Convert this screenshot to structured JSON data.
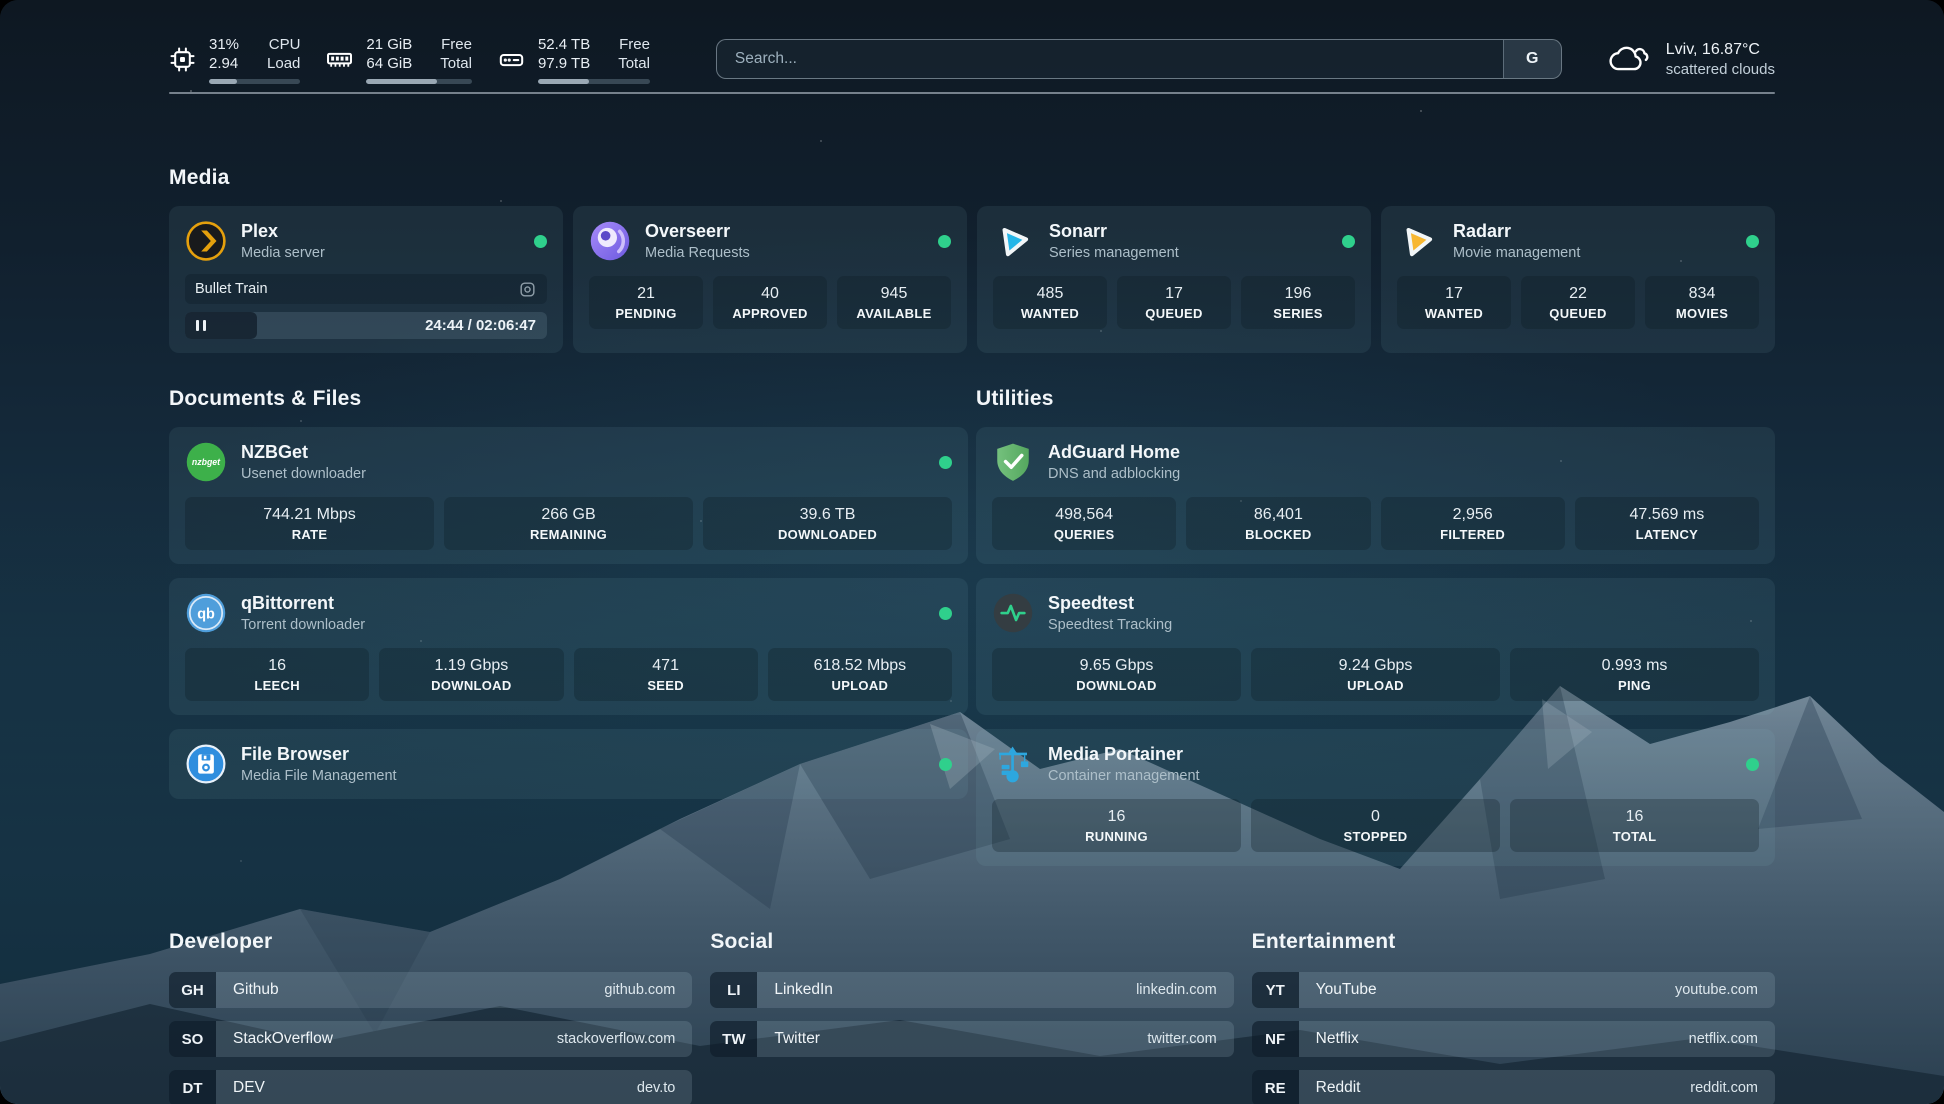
{
  "colors": {
    "status_online": "#2fd08c",
    "plex_gold": "#e5a00d",
    "overseerr_purple": "#8b79f2",
    "sonarr_blue": "#25b6e8",
    "radarr_orange": "#f7b731",
    "nzbget_green": "#3db04a",
    "qbittorrent_blue": "#4f9edb",
    "filebrowser_blue": "#2f8ede",
    "adguard_green": "#67b279",
    "speedtest_green": "#2fd08c",
    "portainer_blue": "#2da7df"
  },
  "topbar": {
    "resources": [
      {
        "icon": "cpu-icon",
        "value_top": "31%",
        "label_top": "CPU",
        "value_bottom": "2.94",
        "label_bottom": "Load",
        "progress_pct": 31
      },
      {
        "icon": "memory-icon",
        "value_top": "21 GiB",
        "label_top": "Free",
        "value_bottom": "64 GiB",
        "label_bottom": "Total",
        "progress_pct": 67
      },
      {
        "icon": "disk-icon",
        "value_top": "52.4 TB",
        "label_top": "Free",
        "value_bottom": "97.9 TB",
        "label_bottom": "Total",
        "progress_pct": 46
      }
    ],
    "search": {
      "placeholder": "Search...",
      "button_label": "G"
    },
    "weather": {
      "icon": "cloud-icon",
      "location": "Lviv, 16.87°C",
      "condition": "scattered clouds"
    }
  },
  "media": {
    "title": "Media",
    "plex": {
      "name": "Plex",
      "desc": "Media server",
      "online": true,
      "now_playing": "Bullet Train",
      "time_display": "24:44 / 02:06:47",
      "progress_pct": 20
    },
    "overseerr": {
      "name": "Overseerr",
      "desc": "Media Requests",
      "online": true,
      "stats": [
        {
          "value": "21",
          "label": "PENDING"
        },
        {
          "value": "40",
          "label": "APPROVED"
        },
        {
          "value": "945",
          "label": "AVAILABLE"
        }
      ]
    },
    "sonarr": {
      "name": "Sonarr",
      "desc": "Series management",
      "online": true,
      "stats": [
        {
          "value": "485",
          "label": "WANTED"
        },
        {
          "value": "17",
          "label": "QUEUED"
        },
        {
          "value": "196",
          "label": "SERIES"
        }
      ]
    },
    "radarr": {
      "name": "Radarr",
      "desc": "Movie management",
      "online": true,
      "stats": [
        {
          "value": "17",
          "label": "WANTED"
        },
        {
          "value": "22",
          "label": "QUEUED"
        },
        {
          "value": "834",
          "label": "MOVIES"
        }
      ]
    }
  },
  "documents": {
    "title": "Documents & Files",
    "nzbget": {
      "name": "NZBGet",
      "desc": "Usenet downloader",
      "online": true,
      "stats": [
        {
          "value": "744.21 Mbps",
          "label": "RATE"
        },
        {
          "value": "266 GB",
          "label": "REMAINING"
        },
        {
          "value": "39.6 TB",
          "label": "DOWNLOADED"
        }
      ]
    },
    "qbittorrent": {
      "name": "qBittorrent",
      "desc": "Torrent downloader",
      "online": true,
      "stats": [
        {
          "value": "16",
          "label": "LEECH"
        },
        {
          "value": "1.19 Gbps",
          "label": "DOWNLOAD"
        },
        {
          "value": "471",
          "label": "SEED"
        },
        {
          "value": "618.52 Mbps",
          "label": "UPLOAD"
        }
      ]
    },
    "filebrowser": {
      "name": "File Browser",
      "desc": "Media File Management",
      "online": true
    }
  },
  "utilities": {
    "title": "Utilities",
    "adguard": {
      "name": "AdGuard Home",
      "desc": "DNS and adblocking",
      "stats": [
        {
          "value": "498,564",
          "label": "QUERIES"
        },
        {
          "value": "86,401",
          "label": "BLOCKED"
        },
        {
          "value": "2,956",
          "label": "FILTERED"
        },
        {
          "value": "47.569 ms",
          "label": "LATENCY"
        }
      ]
    },
    "speedtest": {
      "name": "Speedtest",
      "desc": "Speedtest Tracking",
      "stats": [
        {
          "value": "9.65 Gbps",
          "label": "DOWNLOAD"
        },
        {
          "value": "9.24 Gbps",
          "label": "UPLOAD"
        },
        {
          "value": "0.993 ms",
          "label": "PING"
        }
      ]
    },
    "portainer": {
      "name": "Media Portainer",
      "desc": "Container management",
      "online": true,
      "stats": [
        {
          "value": "16",
          "label": "RUNNING"
        },
        {
          "value": "0",
          "label": "STOPPED"
        },
        {
          "value": "16",
          "label": "TOTAL"
        }
      ]
    }
  },
  "bookmarks": {
    "developer": {
      "title": "Developer",
      "items": [
        {
          "abbr": "GH",
          "name": "Github",
          "url": "github.com"
        },
        {
          "abbr": "SO",
          "name": "StackOverflow",
          "url": "stackoverflow.com"
        },
        {
          "abbr": "DT",
          "name": "DEV",
          "url": "dev.to"
        }
      ]
    },
    "social": {
      "title": "Social",
      "items": [
        {
          "abbr": "LI",
          "name": "LinkedIn",
          "url": "linkedin.com"
        },
        {
          "abbr": "TW",
          "name": "Twitter",
          "url": "twitter.com"
        }
      ]
    },
    "entertainment": {
      "title": "Entertainment",
      "items": [
        {
          "abbr": "YT",
          "name": "YouTube",
          "url": "youtube.com"
        },
        {
          "abbr": "NF",
          "name": "Netflix",
          "url": "netflix.com"
        },
        {
          "abbr": "RE",
          "name": "Reddit",
          "url": "reddit.com"
        }
      ]
    }
  }
}
